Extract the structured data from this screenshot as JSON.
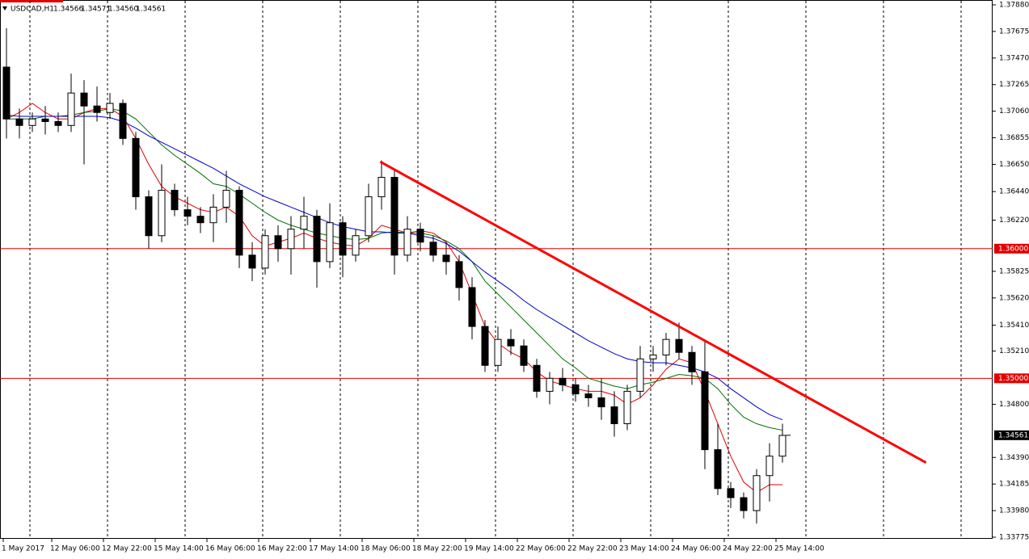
{
  "chart_data": {
    "type": "candlestick",
    "symbol": "USDCAD,H1",
    "header_values": [
      "1.34566",
      "1.34571",
      "1.34560",
      "1.34561"
    ],
    "ylim": [
      1.33775,
      1.3788
    ],
    "yticks": [
      {
        "value": 1.3788,
        "label": "1.37880"
      },
      {
        "value": 1.37675,
        "label": "1.37675"
      },
      {
        "value": 1.3747,
        "label": "1.37470"
      },
      {
        "value": 1.37265,
        "label": "1.37265"
      },
      {
        "value": 1.3706,
        "label": "1.37060"
      },
      {
        "value": 1.36855,
        "label": "1.36855"
      },
      {
        "value": 1.3665,
        "label": "1.36650"
      },
      {
        "value": 1.3644,
        "label": "1.36440"
      },
      {
        "value": 1.3622,
        "label": "1.36220"
      },
      {
        "value": 1.35825,
        "label": "1.35825"
      },
      {
        "value": 1.3562,
        "label": "1.35620"
      },
      {
        "value": 1.3541,
        "label": "1.35410"
      },
      {
        "value": 1.3521,
        "label": "1.35210"
      },
      {
        "value": 1.348,
        "label": "1.34800"
      },
      {
        "value": 1.3439,
        "label": "1.34390"
      },
      {
        "value": 1.34185,
        "label": "1.34185"
      },
      {
        "value": 1.3398,
        "label": "1.33980"
      },
      {
        "value": 1.33775,
        "label": "1.33775"
      }
    ],
    "time_labels": [
      "1 May 2017",
      "12 May 06:00",
      "12 May 22:00",
      "15 May 14:00",
      "16 May 06:00",
      "16 May 22:00",
      "17 May 14:00",
      "18 May 06:00",
      "18 May 22:00",
      "19 May 14:00",
      "22 May 06:00",
      "22 May 22:00",
      "23 May 14:00",
      "24 May 06:00",
      "24 May 22:00",
      "25 May 14:00"
    ],
    "candles": [
      [
        1.374,
        1.377,
        1.3685,
        1.37
      ],
      [
        1.37,
        1.3708,
        1.3685,
        1.3695
      ],
      [
        1.3695,
        1.3705,
        1.369,
        1.37
      ],
      [
        1.37,
        1.371,
        1.3688,
        1.3698
      ],
      [
        1.3698,
        1.3705,
        1.369,
        1.3695
      ],
      [
        1.3695,
        1.3735,
        1.369,
        1.372
      ],
      [
        1.372,
        1.373,
        1.3665,
        1.371
      ],
      [
        1.371,
        1.3725,
        1.3698,
        1.3705
      ],
      [
        1.3705,
        1.372,
        1.37,
        1.3712
      ],
      [
        1.3712,
        1.3715,
        1.368,
        1.3685
      ],
      [
        1.3685,
        1.369,
        1.363,
        1.364
      ],
      [
        1.364,
        1.3645,
        1.36,
        1.361
      ],
      [
        1.361,
        1.3665,
        1.3605,
        1.3645
      ],
      [
        1.3645,
        1.365,
        1.3625,
        1.363
      ],
      [
        1.363,
        1.364,
        1.3618,
        1.3625
      ],
      [
        1.3625,
        1.3632,
        1.3612,
        1.362
      ],
      [
        1.362,
        1.3642,
        1.3605,
        1.3632
      ],
      [
        1.3632,
        1.366,
        1.362,
        1.3645
      ],
      [
        1.3645,
        1.3648,
        1.3585,
        1.3595
      ],
      [
        1.3595,
        1.3605,
        1.3575,
        1.3585
      ],
      [
        1.3585,
        1.3615,
        1.358,
        1.361
      ],
      [
        1.361,
        1.3618,
        1.359,
        1.36
      ],
      [
        1.36,
        1.3625,
        1.358,
        1.3615
      ],
      [
        1.3615,
        1.364,
        1.36,
        1.3625
      ],
      [
        1.3625,
        1.363,
        1.357,
        1.359
      ],
      [
        1.359,
        1.3635,
        1.3585,
        1.362
      ],
      [
        1.362,
        1.3625,
        1.3578,
        1.3595
      ],
      [
        1.3595,
        1.3615,
        1.359,
        1.361
      ],
      [
        1.361,
        1.365,
        1.3605,
        1.364
      ],
      [
        1.364,
        1.3668,
        1.363,
        1.3655
      ],
      [
        1.3655,
        1.366,
        1.358,
        1.3595
      ],
      [
        1.3595,
        1.3625,
        1.359,
        1.3615
      ],
      [
        1.3615,
        1.362,
        1.3598,
        1.3605
      ],
      [
        1.3605,
        1.361,
        1.359,
        1.3595
      ],
      [
        1.3595,
        1.3605,
        1.358,
        1.359
      ],
      [
        1.359,
        1.3595,
        1.356,
        1.357
      ],
      [
        1.357,
        1.3578,
        1.353,
        1.354
      ],
      [
        1.354,
        1.3545,
        1.3505,
        1.351
      ],
      [
        1.351,
        1.354,
        1.3505,
        1.353
      ],
      [
        1.353,
        1.3538,
        1.3518,
        1.3525
      ],
      [
        1.3525,
        1.353,
        1.3505,
        1.351
      ],
      [
        1.351,
        1.3515,
        1.3485,
        1.349
      ],
      [
        1.349,
        1.3505,
        1.348,
        1.35
      ],
      [
        1.35,
        1.3508,
        1.349,
        1.3495
      ],
      [
        1.3495,
        1.35,
        1.3482,
        1.3488
      ],
      [
        1.3488,
        1.3495,
        1.3478,
        1.3485
      ],
      [
        1.3485,
        1.35,
        1.3468,
        1.3478
      ],
      [
        1.3478,
        1.349,
        1.3455,
        1.3465
      ],
      [
        1.3465,
        1.3495,
        1.346,
        1.349
      ],
      [
        1.349,
        1.3525,
        1.3485,
        1.3515
      ],
      [
        1.3515,
        1.3525,
        1.3505,
        1.3518
      ],
      [
        1.3518,
        1.3535,
        1.351,
        1.353
      ],
      [
        1.353,
        1.3543,
        1.3515,
        1.352
      ],
      [
        1.352,
        1.3525,
        1.3495,
        1.3505
      ],
      [
        1.3505,
        1.3528,
        1.343,
        1.3445
      ],
      [
        1.3445,
        1.3465,
        1.341,
        1.3415
      ],
      [
        1.3415,
        1.342,
        1.34,
        1.3408
      ],
      [
        1.3408,
        1.3412,
        1.3392,
        1.3398
      ],
      [
        1.3398,
        1.343,
        1.3388,
        1.3425
      ],
      [
        1.3425,
        1.345,
        1.3405,
        1.344
      ],
      [
        1.344,
        1.3465,
        1.3435,
        1.3456
      ]
    ],
    "series": [
      {
        "color": "#e00000",
        "values": [
          1.37,
          1.3705,
          1.3712,
          1.3705,
          1.37,
          1.37,
          1.3705,
          1.3708,
          1.3708,
          1.3702,
          1.3685,
          1.3665,
          1.3648,
          1.364,
          1.3635,
          1.363,
          1.3628,
          1.3632,
          1.3625,
          1.361,
          1.3602,
          1.3605,
          1.3608,
          1.3612,
          1.3608,
          1.3605,
          1.3603,
          1.3602,
          1.3608,
          1.3618,
          1.3615,
          1.3612,
          1.3614,
          1.3612,
          1.3605,
          1.359,
          1.3565,
          1.354,
          1.3527,
          1.352,
          1.3515,
          1.3505,
          1.3498,
          1.3495,
          1.3492,
          1.349,
          1.349,
          1.3487,
          1.348,
          1.3485,
          1.3495,
          1.3507,
          1.3515,
          1.3512,
          1.349,
          1.3465,
          1.344,
          1.342,
          1.3412,
          1.3418,
          1.3418
        ]
      },
      {
        "color": "#007000",
        "values": [
          1.37,
          1.37,
          1.37,
          1.3702,
          1.3702,
          1.3703,
          1.3705,
          1.3706,
          1.3708,
          1.3706,
          1.37,
          1.369,
          1.368,
          1.3672,
          1.3665,
          1.3658,
          1.365,
          1.3648,
          1.3642,
          1.3635,
          1.3628,
          1.3622,
          1.3618,
          1.3615,
          1.3612,
          1.361,
          1.3608,
          1.3607,
          1.3608,
          1.3612,
          1.3613,
          1.3612,
          1.3612,
          1.361,
          1.3606,
          1.36,
          1.359,
          1.3575,
          1.3565,
          1.3555,
          1.3545,
          1.3535,
          1.3525,
          1.3515,
          1.3508,
          1.35,
          1.3497,
          1.3494,
          1.3492,
          1.3495,
          1.3497,
          1.35,
          1.3503,
          1.3502,
          1.35,
          1.3492,
          1.348,
          1.347,
          1.3465,
          1.3462,
          1.346
        ]
      },
      {
        "color": "#0000c8",
        "values": [
          1.3703,
          1.3702,
          1.3702,
          1.3702,
          1.3702,
          1.3702,
          1.3702,
          1.3702,
          1.3701,
          1.3698,
          1.3693,
          1.3687,
          1.3682,
          1.3677,
          1.3672,
          1.3667,
          1.3662,
          1.3656,
          1.365,
          1.3645,
          1.364,
          1.3636,
          1.3632,
          1.3628,
          1.3624,
          1.362,
          1.3617,
          1.3615,
          1.3613,
          1.3613,
          1.3612,
          1.3612,
          1.361,
          1.3608,
          1.3604,
          1.3598,
          1.359,
          1.3582,
          1.3575,
          1.3568,
          1.356,
          1.3553,
          1.3547,
          1.3541,
          1.3535,
          1.3529,
          1.3524,
          1.3519,
          1.3515,
          1.3513,
          1.3512,
          1.3512,
          1.351,
          1.3508,
          1.3505,
          1.35,
          1.3492,
          1.3485,
          1.3478,
          1.3472,
          1.3468
        ]
      }
    ],
    "levels": [
      {
        "value": 1.36,
        "label": "1.36000"
      },
      {
        "value": 1.35,
        "label": "1.35000"
      }
    ],
    "level_color": "#e00000",
    "last_price": {
      "value": 1.34561,
      "label": "1.34561"
    },
    "trendline": {
      "color": "#ff0000",
      "x": [
        28.9,
        71.1
      ],
      "y": [
        1.3667,
        1.3435
      ]
    }
  }
}
